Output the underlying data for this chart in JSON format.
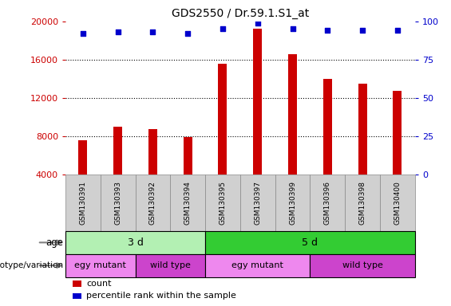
{
  "title": "GDS2550 / Dr.59.1.S1_at",
  "samples": [
    "GSM130391",
    "GSM130393",
    "GSM130392",
    "GSM130394",
    "GSM130395",
    "GSM130397",
    "GSM130399",
    "GSM130396",
    "GSM130398",
    "GSM130400"
  ],
  "counts": [
    7600,
    9000,
    8700,
    7900,
    15600,
    19200,
    16600,
    14000,
    13500,
    12700
  ],
  "percentile_ranks": [
    92,
    93,
    93,
    92,
    95,
    99,
    95,
    94,
    94,
    94
  ],
  "bar_color": "#cc0000",
  "dot_color": "#0000cc",
  "ylim_left": [
    4000,
    20000
  ],
  "yticks_left": [
    4000,
    8000,
    12000,
    16000,
    20000
  ],
  "ylim_right": [
    0,
    100
  ],
  "yticks_right": [
    0,
    25,
    50,
    75,
    100
  ],
  "age_groups": [
    {
      "label": "3 d",
      "start": 0,
      "end": 4,
      "color": "#b3f0b3"
    },
    {
      "label": "5 d",
      "start": 4,
      "end": 10,
      "color": "#33cc33"
    }
  ],
  "genotype_groups": [
    {
      "label": "egy mutant",
      "start": 0,
      "end": 2,
      "color": "#ee88ee"
    },
    {
      "label": "wild type",
      "start": 2,
      "end": 4,
      "color": "#cc44cc"
    },
    {
      "label": "egy mutant",
      "start": 4,
      "end": 7,
      "color": "#ee88ee"
    },
    {
      "label": "wild type",
      "start": 7,
      "end": 10,
      "color": "#cc44cc"
    }
  ],
  "legend_items": [
    {
      "label": "count",
      "color": "#cc0000"
    },
    {
      "label": "percentile rank within the sample",
      "color": "#0000cc"
    }
  ],
  "left_label_color": "#cc0000",
  "right_label_color": "#0000cc",
  "age_row_label": "age",
  "genotype_row_label": "genotype/variation",
  "sample_box_color": "#d0d0d0",
  "sample_box_edge": "#888888"
}
